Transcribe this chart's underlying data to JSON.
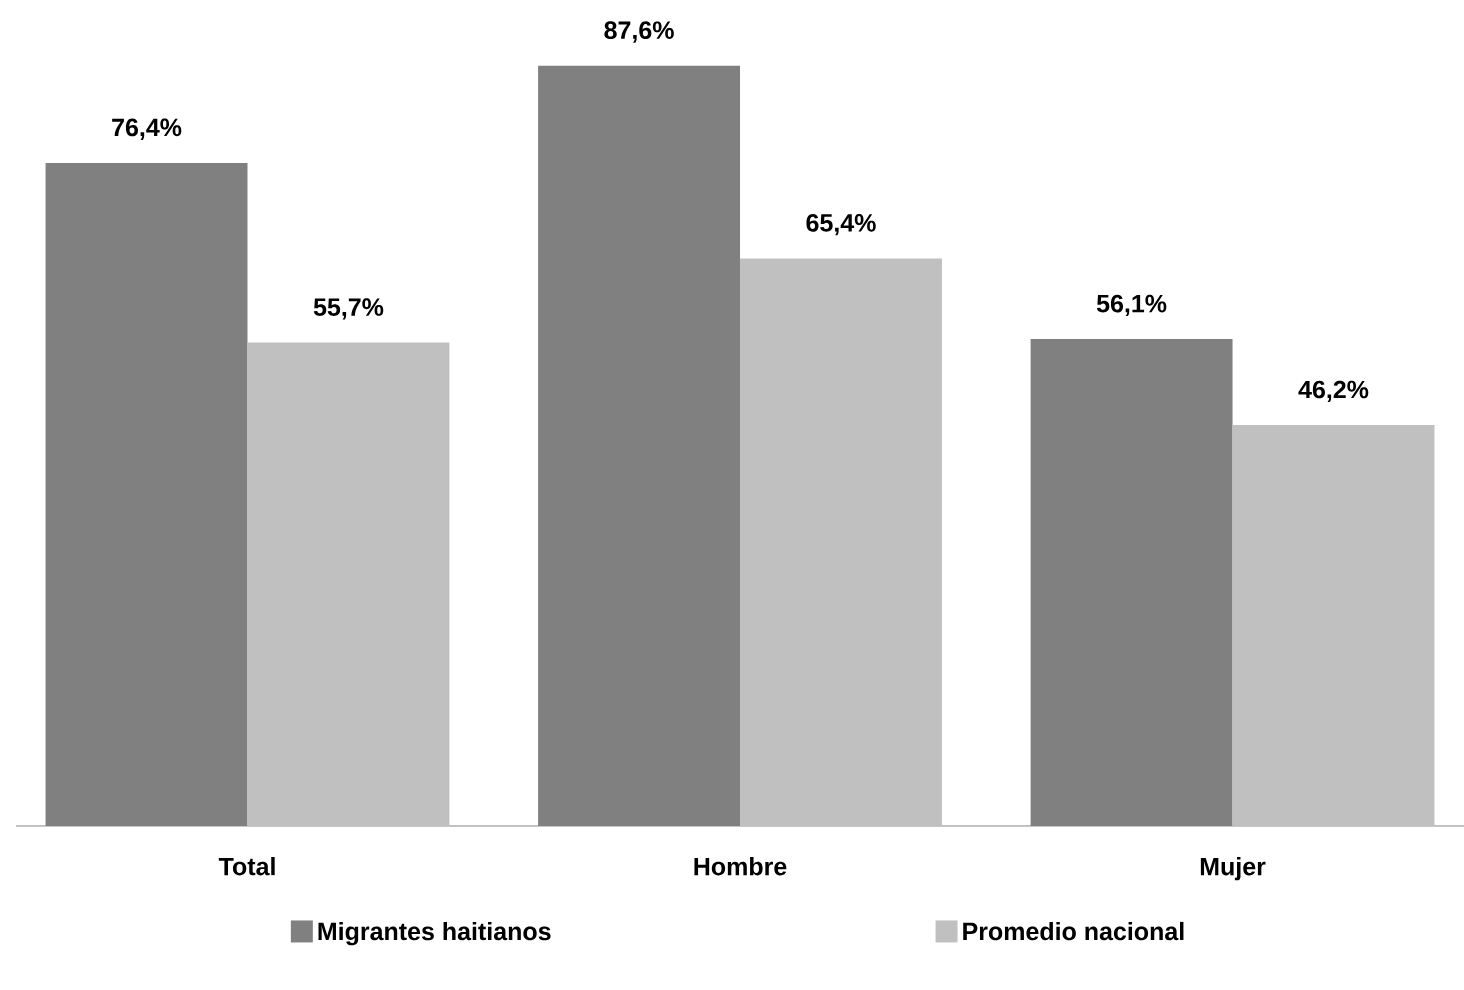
{
  "chart_data": {
    "type": "bar",
    "categories": [
      "Total",
      "Hombre",
      "Mujer"
    ],
    "series": [
      {
        "name": "Migrantes haitianos",
        "color": "#808080",
        "values": [
          76.4,
          87.6,
          56.1
        ],
        "value_labels": [
          "76,4%",
          "87,6%",
          "56,1%"
        ]
      },
      {
        "name": "Promedio nacional",
        "color": "#c0c0c0",
        "values": [
          55.7,
          65.4,
          46.2
        ],
        "value_labels": [
          "55,7%",
          "65,4%",
          "46,2%"
        ]
      }
    ],
    "legend": "bottom"
  }
}
